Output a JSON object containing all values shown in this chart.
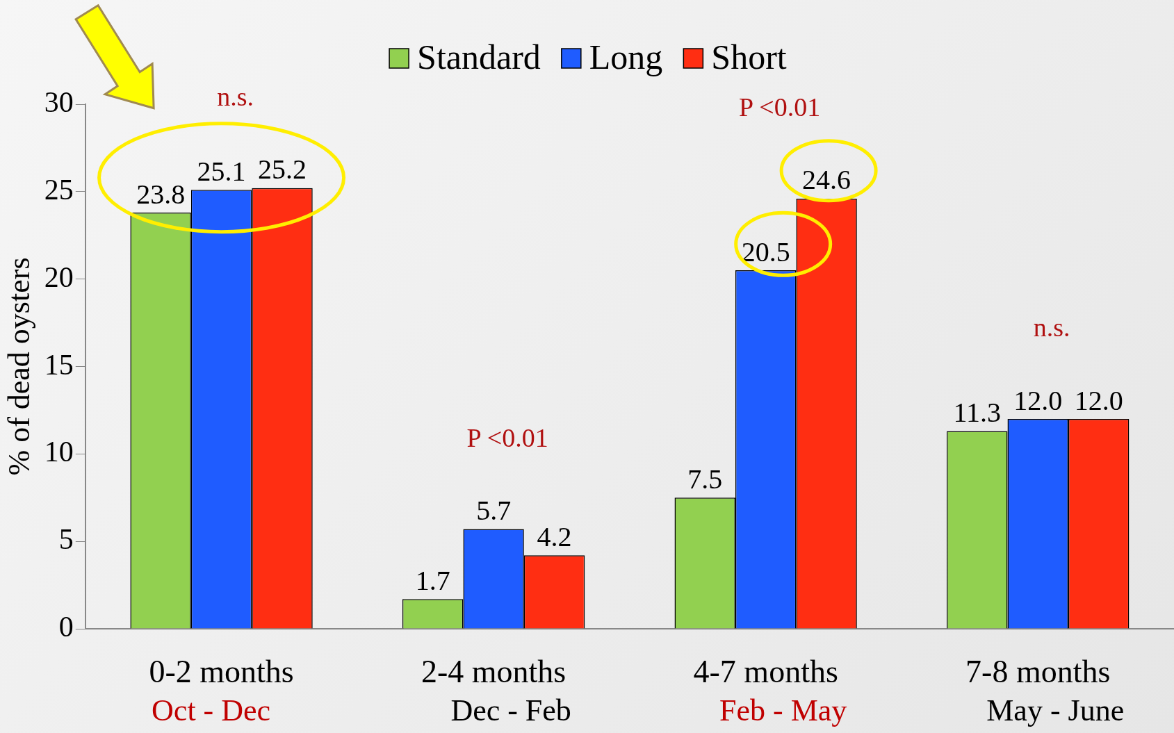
{
  "chart_data": {
    "type": "bar",
    "ylabel": "% of dead oysters",
    "categories": [
      "0-2 months\nOct - Dec",
      "2-4 months\nDec - Feb",
      "4-7 months\nFeb - May",
      "7-8 months\nMay - June"
    ],
    "series": [
      {
        "name": "Standard",
        "color": "#92d050",
        "values": [
          23.8,
          1.7,
          7.5,
          11.3
        ],
        "value_labels": [
          "23.8",
          "1.7",
          "7.5",
          "11.3"
        ]
      },
      {
        "name": "Long",
        "color": "#1f5cff",
        "values": [
          25.1,
          5.7,
          20.5,
          12.0
        ],
        "value_labels": [
          "25.1",
          "5.7",
          "20.5",
          "12.0"
        ]
      },
      {
        "name": "Short",
        "color": "#ff2e12",
        "values": [
          25.2,
          4.2,
          24.6,
          12.0
        ],
        "value_labels": [
          "25.2",
          "4.2",
          "24.6",
          "12.0"
        ]
      }
    ],
    "ylim": [
      0,
      30
    ],
    "yticks": [
      0,
      5,
      10,
      15,
      20,
      25,
      30
    ],
    "grid": false,
    "legend": "top",
    "annotations": [
      "n.s.",
      "P <0.01",
      "P <0.01",
      "n.s."
    ]
  }
}
